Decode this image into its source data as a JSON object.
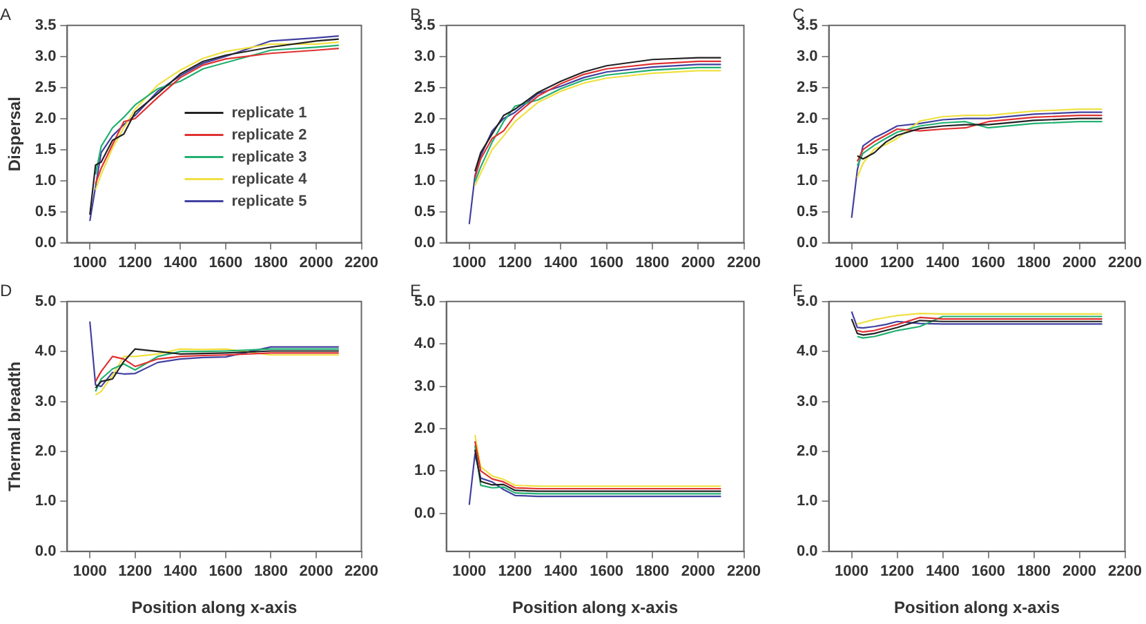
{
  "chart_data": [
    {
      "type": "line",
      "title": "A",
      "ylabel": "Dispersal",
      "legend": "bottom right",
      "marker": "none",
      "line_style": "solid",
      "grid": false,
      "x": [
        1000,
        1025,
        1050,
        1100,
        1150,
        1200,
        1300,
        1400,
        1500,
        1600,
        1800,
        2000,
        2100
      ],
      "xlim": [
        900,
        2200
      ],
      "xticks": [
        1000,
        1200,
        1400,
        1600,
        1800,
        2000,
        2200
      ],
      "ylim": [
        0,
        3.5
      ],
      "yticks": [
        {
          "value": 0,
          "label": "0.0"
        },
        {
          "value": 0.5,
          "label": "0.5"
        },
        {
          "value": 1,
          "label": "1.0"
        },
        {
          "value": 1.5,
          "label": "1.5"
        },
        {
          "value": 2,
          "label": "2.0"
        },
        {
          "value": 2.5,
          "label": "2.5"
        },
        {
          "value": 3,
          "label": "3.0"
        },
        {
          "value": 3.5,
          "label": "3.5"
        }
      ],
      "series": [
        {
          "name": "replicate 1",
          "color": "#222222",
          "values": [
            0.45,
            1.25,
            1.3,
            1.65,
            1.75,
            2.1,
            2.4,
            2.72,
            2.92,
            3.02,
            3.15,
            3.25,
            3.28
          ]
        },
        {
          "name": "replicate 2",
          "color": "#e03030",
          "values": [
            null,
            0.95,
            1.2,
            1.58,
            1.95,
            2.0,
            2.34,
            2.66,
            2.86,
            2.96,
            3.05,
            3.1,
            3.13
          ]
        },
        {
          "name": "replicate 3",
          "color": "#20b070",
          "values": [
            null,
            1.1,
            1.55,
            1.85,
            2.02,
            2.22,
            2.48,
            2.6,
            2.8,
            2.9,
            3.1,
            3.15,
            3.18
          ]
        },
        {
          "name": "replicate 4",
          "color": "#f0e040",
          "values": [
            null,
            0.85,
            1.1,
            1.52,
            1.85,
            2.15,
            2.54,
            2.78,
            2.97,
            3.08,
            3.2,
            3.2,
            3.23
          ]
        },
        {
          "name": "replicate 5",
          "color": "#4040a0",
          "values": [
            0.35,
            0.9,
            1.45,
            1.72,
            1.9,
            2.05,
            2.44,
            2.69,
            2.89,
            3.0,
            3.25,
            3.3,
            3.33
          ]
        }
      ]
    },
    {
      "type": "line",
      "title": "B",
      "marker": "none",
      "line_style": "solid",
      "grid": false,
      "x": [
        1000,
        1025,
        1050,
        1100,
        1150,
        1200,
        1300,
        1400,
        1500,
        1600,
        1800,
        2000,
        2100
      ],
      "xlim": [
        900,
        2200
      ],
      "xticks": [
        1000,
        1200,
        1400,
        1600,
        1800,
        2000,
        2200
      ],
      "ylim": [
        0,
        3.5
      ],
      "yticks": [
        {
          "value": 0,
          "label": "0.0"
        },
        {
          "value": 0.5,
          "label": "0.5"
        },
        {
          "value": 1,
          "label": "1.0"
        },
        {
          "value": 1.5,
          "label": "1.5"
        },
        {
          "value": 2,
          "label": "2.0"
        },
        {
          "value": 2.5,
          "label": "2.5"
        },
        {
          "value": 3,
          "label": "3.0"
        },
        {
          "value": 3.5,
          "label": "3.5"
        }
      ],
      "series": [
        {
          "color": "#222222",
          "values": [
            null,
            1.15,
            1.45,
            1.75,
            2.05,
            2.15,
            2.42,
            2.6,
            2.75,
            2.85,
            2.95,
            2.98,
            2.98
          ]
        },
        {
          "color": "#e03030",
          "values": [
            null,
            1.05,
            1.35,
            1.68,
            1.8,
            2.05,
            2.36,
            2.56,
            2.71,
            2.8,
            2.88,
            2.92,
            2.92
          ]
        },
        {
          "color": "#20b070",
          "values": [
            null,
            0.98,
            1.22,
            1.62,
            1.95,
            2.2,
            2.3,
            2.48,
            2.62,
            2.7,
            2.78,
            2.82,
            2.82
          ]
        },
        {
          "color": "#f0e040",
          "values": [
            null,
            0.92,
            1.12,
            1.5,
            1.72,
            1.95,
            2.26,
            2.44,
            2.57,
            2.65,
            2.73,
            2.77,
            2.77
          ]
        },
        {
          "color": "#4040a0",
          "values": [
            0.3,
            1.08,
            1.4,
            1.8,
            2.0,
            2.1,
            2.4,
            2.52,
            2.66,
            2.75,
            2.83,
            2.87,
            2.87
          ]
        }
      ]
    },
    {
      "type": "line",
      "title": "C",
      "marker": "none",
      "line_style": "solid",
      "grid": false,
      "x": [
        1000,
        1025,
        1050,
        1100,
        1150,
        1200,
        1300,
        1400,
        1500,
        1600,
        1800,
        2000,
        2100
      ],
      "xlim": [
        900,
        2200
      ],
      "xticks": [
        1000,
        1200,
        1400,
        1600,
        1800,
        2000,
        2200
      ],
      "ylim": [
        0,
        3.5
      ],
      "yticks": [
        {
          "value": 0,
          "label": "0.0"
        },
        {
          "value": 0.5,
          "label": "0.5"
        },
        {
          "value": 1,
          "label": "1.0"
        },
        {
          "value": 1.5,
          "label": "1.5"
        },
        {
          "value": 2,
          "label": "2.0"
        },
        {
          "value": 2.5,
          "label": "2.5"
        },
        {
          "value": 3,
          "label": "3.0"
        },
        {
          "value": 3.5,
          "label": "3.5"
        }
      ],
      "series": [
        {
          "color": "#222222",
          "values": [
            null,
            1.4,
            1.35,
            1.45,
            1.62,
            1.73,
            1.84,
            1.88,
            1.9,
            1.9,
            1.97,
            2.0,
            2.0
          ]
        },
        {
          "color": "#e03030",
          "values": [
            null,
            1.31,
            1.5,
            1.63,
            1.73,
            1.83,
            1.8,
            1.83,
            1.85,
            1.95,
            2.02,
            2.05,
            2.05
          ]
        },
        {
          "color": "#20b070",
          "values": [
            null,
            1.24,
            1.44,
            1.57,
            1.68,
            1.78,
            1.88,
            1.93,
            1.95,
            1.85,
            1.92,
            1.95,
            1.95
          ]
        },
        {
          "color": "#f0e040",
          "values": [
            null,
            1.05,
            1.28,
            1.51,
            1.58,
            1.68,
            1.96,
            2.03,
            2.05,
            2.05,
            2.12,
            2.15,
            2.15
          ]
        },
        {
          "color": "#4040a0",
          "values": [
            0.4,
            1.17,
            1.56,
            1.69,
            1.78,
            1.88,
            1.92,
            1.98,
            2.0,
            2.0,
            2.07,
            2.1,
            2.1
          ]
        }
      ]
    },
    {
      "type": "line",
      "title": "D",
      "ylabel": "Thermal breadth",
      "xlabel": "Position along x-axis",
      "marker": "none",
      "line_style": "solid",
      "grid": false,
      "x": [
        1000,
        1025,
        1050,
        1100,
        1150,
        1200,
        1300,
        1400,
        1500,
        1600,
        1800,
        2000,
        2100
      ],
      "xlim": [
        900,
        2200
      ],
      "xticks": [
        1000,
        1200,
        1400,
        1600,
        1800,
        2000,
        2200
      ],
      "ylim": [
        0,
        5
      ],
      "yticks": [
        {
          "value": 0,
          "label": "0.0"
        },
        {
          "value": 1,
          "label": "1.0"
        },
        {
          "value": 2,
          "label": "2.0"
        },
        {
          "value": 3,
          "label": "3.0"
        },
        {
          "value": 4,
          "label": "4.0"
        },
        {
          "value": 5,
          "label": "5.0"
        }
      ],
      "series": [
        {
          "color": "#222222",
          "values": [
            null,
            3.27,
            3.4,
            3.45,
            3.8,
            4.05,
            4.0,
            3.95,
            3.96,
            3.97,
            4.01,
            4.01,
            4.01
          ]
        },
        {
          "color": "#e03030",
          "values": [
            null,
            3.4,
            3.6,
            3.9,
            3.85,
            3.7,
            3.85,
            3.9,
            3.92,
            3.93,
            3.97,
            3.97,
            3.97
          ]
        },
        {
          "color": "#20b070",
          "values": [
            null,
            3.2,
            3.45,
            3.65,
            3.75,
            3.63,
            3.9,
            4.0,
            4.0,
            4.01,
            4.05,
            4.05,
            4.05
          ]
        },
        {
          "color": "#f0e040",
          "values": [
            null,
            3.13,
            3.2,
            3.52,
            3.9,
            3.9,
            3.95,
            4.05,
            4.04,
            4.05,
            3.93,
            3.93,
            3.93
          ]
        },
        {
          "color": "#4040a0",
          "values": [
            4.6,
            3.33,
            3.3,
            3.58,
            3.55,
            3.56,
            3.78,
            3.85,
            3.88,
            3.89,
            4.09,
            4.09,
            4.09
          ]
        }
      ]
    },
    {
      "type": "line",
      "title": "E",
      "xlabel": "Position along x-axis",
      "marker": "none",
      "line_style": "solid",
      "grid": false,
      "x": [
        1000,
        1025,
        1050,
        1100,
        1150,
        1200,
        1300,
        1400,
        1500,
        1600,
        1800,
        2000,
        2100
      ],
      "xlim": [
        900,
        2200
      ],
      "xticks": [
        1000,
        1200,
        1400,
        1600,
        1800,
        2000,
        2200
      ],
      "ylim": [
        -0.9,
        5
      ],
      "yticks": [
        {
          "value": 0,
          "label": "0.0"
        },
        {
          "value": 1,
          "label": "1.0"
        },
        {
          "value": 2,
          "label": "2.0"
        },
        {
          "value": 3,
          "label": "3.0"
        },
        {
          "value": 4,
          "label": "4.0"
        },
        {
          "value": 5,
          "label": "5.0"
        }
      ],
      "series": [
        {
          "color": "#222222",
          "values": [
            null,
            1.5,
            0.75,
            0.67,
            0.68,
            0.54,
            0.52,
            0.52,
            0.52,
            0.52,
            0.52,
            0.52,
            0.52
          ]
        },
        {
          "color": "#e03030",
          "values": [
            null,
            1.7,
            1.0,
            0.81,
            0.74,
            0.6,
            0.58,
            0.58,
            0.58,
            0.58,
            0.58,
            0.58,
            0.58
          ]
        },
        {
          "color": "#20b070",
          "values": [
            null,
            1.6,
            0.66,
            0.6,
            0.62,
            0.48,
            0.46,
            0.46,
            0.46,
            0.46,
            0.46,
            0.46,
            0.46
          ]
        },
        {
          "color": "#f0e040",
          "values": [
            null,
            1.85,
            1.1,
            0.88,
            0.8,
            0.66,
            0.64,
            0.64,
            0.64,
            0.64,
            0.64,
            0.64,
            0.64
          ]
        },
        {
          "color": "#4040a0",
          "values": [
            0.2,
            1.4,
            0.83,
            0.74,
            0.56,
            0.42,
            0.4,
            0.4,
            0.4,
            0.4,
            0.4,
            0.4,
            0.4
          ]
        }
      ]
    },
    {
      "type": "line",
      "title": "F",
      "xlabel": "Position along x-axis",
      "marker": "none",
      "line_style": "solid",
      "grid": false,
      "x": [
        1000,
        1025,
        1050,
        1100,
        1150,
        1200,
        1300,
        1400,
        1500,
        1600,
        1800,
        2000,
        2100
      ],
      "xlim": [
        900,
        2200
      ],
      "xticks": [
        1000,
        1200,
        1400,
        1600,
        1800,
        2000,
        2200
      ],
      "ylim": [
        0,
        5
      ],
      "yticks": [
        {
          "value": 0,
          "label": "0.0"
        },
        {
          "value": 1,
          "label": "1.0"
        },
        {
          "value": 2,
          "label": "2.0"
        },
        {
          "value": 3,
          "label": "3.0"
        },
        {
          "value": 4,
          "label": "4.0"
        },
        {
          "value": 5,
          "label": "5.0"
        }
      ],
      "series": [
        {
          "color": "#222222",
          "values": [
            4.65,
            4.36,
            4.33,
            4.36,
            4.42,
            4.48,
            4.62,
            4.6,
            4.6,
            4.6,
            4.6,
            4.6,
            4.6
          ]
        },
        {
          "color": "#e03030",
          "values": [
            null,
            4.42,
            4.39,
            4.42,
            4.48,
            4.54,
            4.68,
            4.65,
            4.65,
            4.65,
            4.65,
            4.65,
            4.65
          ]
        },
        {
          "color": "#20b070",
          "values": [
            null,
            4.3,
            4.27,
            4.3,
            4.36,
            4.42,
            4.5,
            4.7,
            4.7,
            4.7,
            4.7,
            4.7,
            4.7
          ]
        },
        {
          "color": "#f0e040",
          "values": [
            null,
            4.55,
            4.58,
            4.64,
            4.68,
            4.72,
            4.76,
            4.75,
            4.75,
            4.75,
            4.75,
            4.75,
            4.75
          ]
        },
        {
          "color": "#4040a0",
          "values": [
            4.8,
            4.48,
            4.47,
            4.5,
            4.54,
            4.6,
            4.56,
            4.55,
            4.55,
            4.55,
            4.55,
            4.55,
            4.55
          ]
        }
      ]
    }
  ]
}
